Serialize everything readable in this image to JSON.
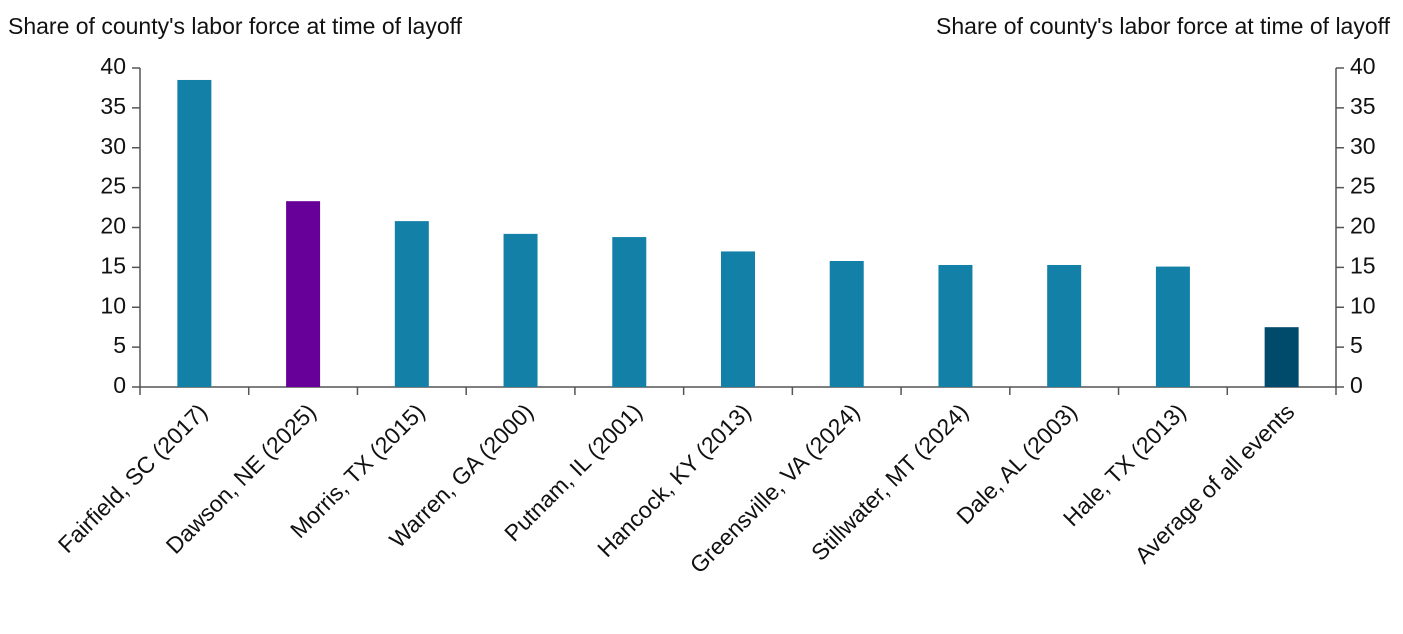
{
  "chart_data": {
    "type": "bar",
    "y_label": "Share of county's labor force at time of layoff",
    "y2_label": "Share of county's labor force at time of layoff",
    "categories": [
      "Fairfield, SC (2017)",
      "Dawson, NE (2025)",
      "Morris, TX (2015)",
      "Warren, GA (2000)",
      "Putnam, IL (2001)",
      "Hancock, KY (2013)",
      "Greensville, VA (2024)",
      "Stillwater, MT (2024)",
      "Dale, AL (2003)",
      "Hale, TX (2013)",
      "Average of all events"
    ],
    "values": [
      38.5,
      23.3,
      20.8,
      19.2,
      18.8,
      17.0,
      15.8,
      15.3,
      15.3,
      15.1,
      7.5
    ],
    "colors": [
      "#1380a8",
      "#660099",
      "#1380a8",
      "#1380a8",
      "#1380a8",
      "#1380a8",
      "#1380a8",
      "#1380a8",
      "#1380a8",
      "#1380a8",
      "#004a6b"
    ],
    "ylim": [
      0,
      40
    ],
    "yticks": [
      0,
      5,
      10,
      15,
      20,
      25,
      30,
      35,
      40
    ],
    "y2lim": [
      0,
      40
    ],
    "y2ticks": [
      0,
      5,
      10,
      15,
      20,
      25,
      30,
      35,
      40
    ],
    "grid": false
  }
}
